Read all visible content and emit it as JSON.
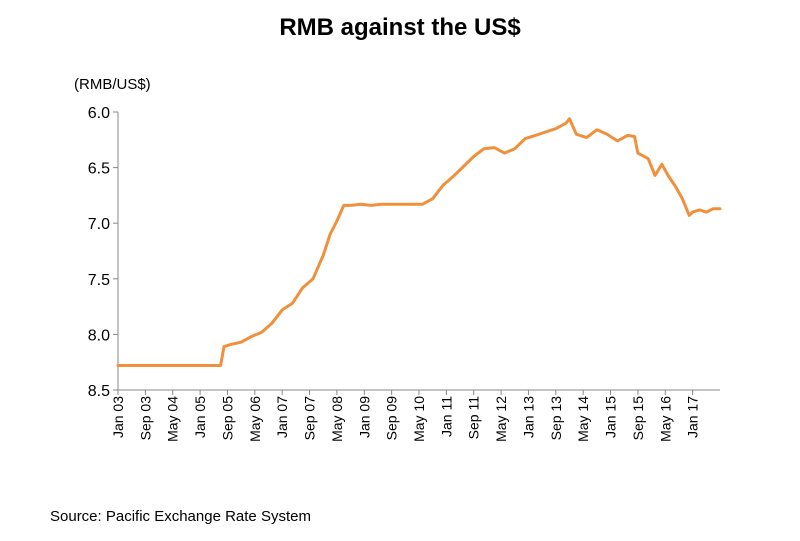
{
  "chart_data": {
    "type": "line",
    "title": "RMB against the US$",
    "ylabel": "(RMB/US$)",
    "xlabel": "",
    "y_inverted": true,
    "ylim": [
      6.0,
      8.5
    ],
    "yticks": [
      "6.0",
      "6.5",
      "7.0",
      "7.5",
      "8.0",
      "8.5"
    ],
    "xticks": [
      "Jan 03",
      "Sep 03",
      "May 04",
      "Jan 05",
      "Sep 05",
      "May 06",
      "Jan 07",
      "Sep 07",
      "May 08",
      "Jan 09",
      "Sep 09",
      "May 10",
      "Jan 11",
      "Sep 11",
      "May 12",
      "Jan 13",
      "Sep 13",
      "May 14",
      "Jan 15",
      "Sep 15",
      "May 16",
      "Jan 17"
    ],
    "x_range": [
      "Jan 03",
      "Sep 17"
    ],
    "grid": false,
    "legend": "none",
    "series": [
      {
        "color": "#f0903c",
        "x": [
          "Jan 03",
          "Jan 04",
          "Jan 05",
          "Jul 05",
          "Aug 05",
          "Oct 05",
          "Jan 06",
          "Apr 06",
          "Jul 06",
          "Oct 06",
          "Jan 07",
          "Apr 07",
          "Jul 07",
          "Oct 07",
          "Jan 08",
          "Mar 08",
          "May 08",
          "Jul 08",
          "Sep 08",
          "Dec 08",
          "Mar 09",
          "Jun 09",
          "Sep 09",
          "Dec 09",
          "Mar 10",
          "Jun 10",
          "Sep 10",
          "Dec 10",
          "Mar 11",
          "Jun 11",
          "Sep 11",
          "Dec 11",
          "Mar 12",
          "Jun 12",
          "Sep 12",
          "Dec 12",
          "Mar 13",
          "Jun 13",
          "Sep 13",
          "Dec 13",
          "Jan 14",
          "Mar 14",
          "Jun 14",
          "Sep 14",
          "Dec 14",
          "Mar 15",
          "Jun 15",
          "Aug 15",
          "Sep 15",
          "Dec 15",
          "Feb 16",
          "Apr 16",
          "Jun 16",
          "Aug 16",
          "Oct 16",
          "Dec 16",
          "Jan 17",
          "Mar 17",
          "May 17",
          "Jul 17",
          "Sep 17"
        ],
        "values": [
          8.28,
          8.28,
          8.28,
          8.28,
          8.11,
          8.09,
          8.07,
          8.02,
          7.98,
          7.9,
          7.78,
          7.72,
          7.58,
          7.5,
          7.29,
          7.1,
          6.98,
          6.84,
          6.84,
          6.83,
          6.84,
          6.83,
          6.83,
          6.83,
          6.83,
          6.83,
          6.78,
          6.66,
          6.58,
          6.49,
          6.4,
          6.33,
          6.32,
          6.37,
          6.33,
          6.24,
          6.21,
          6.18,
          6.15,
          6.1,
          6.06,
          6.2,
          6.23,
          6.16,
          6.2,
          6.26,
          6.21,
          6.22,
          6.37,
          6.42,
          6.57,
          6.47,
          6.58,
          6.67,
          6.78,
          6.93,
          6.9,
          6.88,
          6.9,
          6.87,
          6.87
        ]
      }
    ]
  },
  "source": "Source: Pacific Exchange Rate System"
}
